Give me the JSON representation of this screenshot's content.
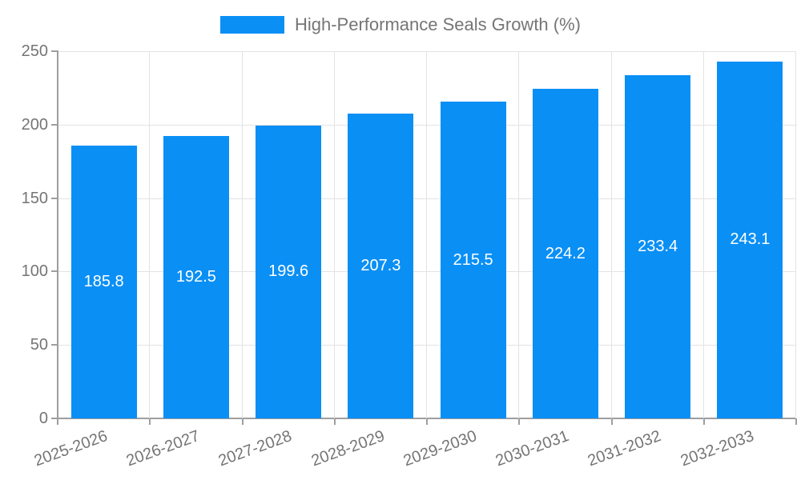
{
  "legend": {
    "label": "High-Performance Seals Growth (%)"
  },
  "chart_data": {
    "type": "bar",
    "title": "High-Performance Seals Growth (%)",
    "categories": [
      "2025-2026",
      "2026-2027",
      "2027-2028",
      "2028-2029",
      "2029-2030",
      "2030-2031",
      "2031-2032",
      "2032-2033"
    ],
    "values": [
      185.8,
      192.5,
      199.6,
      207.3,
      215.5,
      224.2,
      233.4,
      243.1
    ],
    "xlabel": "",
    "ylabel": "",
    "ylim": [
      0,
      250
    ],
    "yticks": [
      0,
      50,
      100,
      150,
      200,
      250
    ],
    "grid": true,
    "legend_position": "top-center",
    "value_label_position": "inside-center",
    "colors": {
      "bar": "#0A8FF5",
      "axis": "#9e9e9e",
      "grid": "#e3e3e3",
      "tick_label": "#757575",
      "legend_label": "#757575",
      "value_label": "#ffffff",
      "background": "#ffffff"
    }
  }
}
